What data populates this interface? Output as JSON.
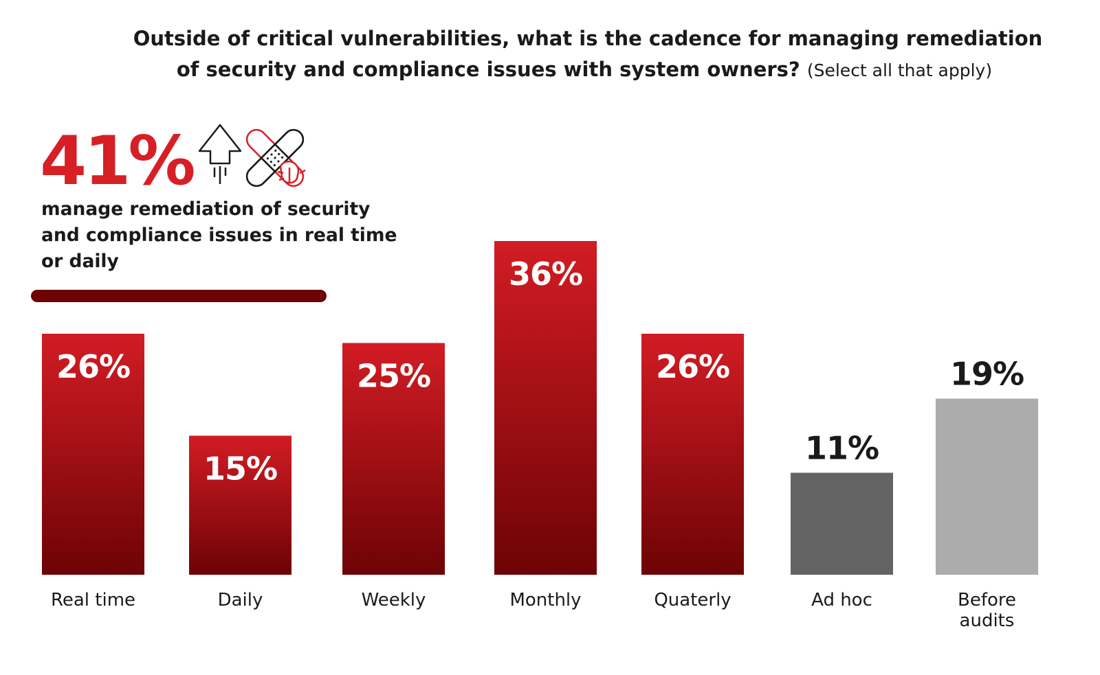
{
  "title": {
    "line1": "Outside of critical vulnerabilities, what is the cadence for managing remediation",
    "line2": "of security and compliance issues with system owners?",
    "note": "(Select all that apply)"
  },
  "callout": {
    "value": "41%",
    "text": "manage remediation of security and compliance issues in real time or daily",
    "icons": [
      "arrow-up-icon",
      "bandage-icon",
      "bug-icon"
    ]
  },
  "colors": {
    "accent": "#d71f26",
    "bar_top": "#d21c24",
    "bar_bottom": "#6d0305",
    "ad_hoc": "#636363",
    "before_audits": "#acacac",
    "value_inside": "#ffffff",
    "value_outside": "#1a1a1a"
  },
  "chart_data": {
    "type": "bar",
    "categories": [
      "Real time",
      "Daily",
      "Weekly",
      "Monthly",
      "Quaterly",
      "Ad hoc",
      "Before audits"
    ],
    "values": [
      26,
      15,
      25,
      36,
      26,
      11,
      19
    ],
    "value_labels": [
      "26%",
      "15%",
      "25%",
      "36%",
      "26%",
      "11%",
      "19%"
    ],
    "bar_colors": [
      "gradient",
      "gradient",
      "gradient",
      "gradient",
      "gradient",
      "#636363",
      "#acacac"
    ],
    "label_positions": [
      "inside",
      "inside",
      "inside",
      "inside",
      "inside",
      "above",
      "above"
    ],
    "ylim": [
      0,
      36
    ],
    "grid": false,
    "legend": "none",
    "xlabel": "",
    "ylabel": ""
  }
}
